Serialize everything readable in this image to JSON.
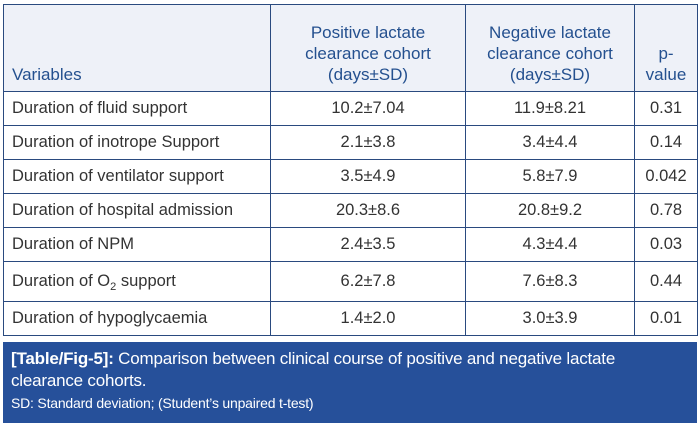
{
  "table": {
    "headers": [
      {
        "lines": [
          "Variables"
        ]
      },
      {
        "lines": [
          "Positive lactate",
          "clearance cohort",
          "(days±SD)"
        ]
      },
      {
        "lines": [
          "Negative lactate",
          "clearance cohort",
          "(days±SD)"
        ]
      },
      {
        "lines": [
          "p-value"
        ]
      }
    ],
    "rows": [
      {
        "variable": "Duration of fluid support",
        "positive": "10.2±7.04",
        "negative": "11.9±8.21",
        "p_value": "0.31"
      },
      {
        "variable": "Duration of inotrope Support",
        "positive": "2.1±3.8",
        "negative": "3.4±4.4",
        "p_value": "0.14"
      },
      {
        "variable": "Duration of ventilator support",
        "positive": "3.5±4.9",
        "negative": "5.8±7.9",
        "p_value": "0.042"
      },
      {
        "variable": "Duration of hospital admission",
        "positive": "20.3±8.6",
        "negative": "20.8±9.2",
        "p_value": "0.78"
      },
      {
        "variable": "Duration of NPM",
        "positive": "2.4±3.5",
        "negative": "4.3±4.4",
        "p_value": "0.03"
      },
      {
        "variable_prefix": "Duration of O",
        "variable_sub": "2",
        "variable_suffix": " support",
        "positive": "6.2±7.8",
        "negative": "7.6±8.3",
        "p_value": "0.44"
      },
      {
        "variable": "Duration of hypoglycaemia",
        "positive": "1.4±2.0",
        "negative": "3.0±3.9",
        "p_value": "0.01"
      }
    ]
  },
  "caption": {
    "label": "[Table/Fig-5]:",
    "text": " Comparison between clinical course of positive and negative lactate clearance cohorts.",
    "note": "SD: Standard deviation; (Student’s unpaired t-test)"
  },
  "colors": {
    "header_text": "#24508f",
    "header_bg": "#eef1f8",
    "border": "#2a4a7f",
    "caption_bg": "#26509a",
    "body_text": "#333333"
  }
}
